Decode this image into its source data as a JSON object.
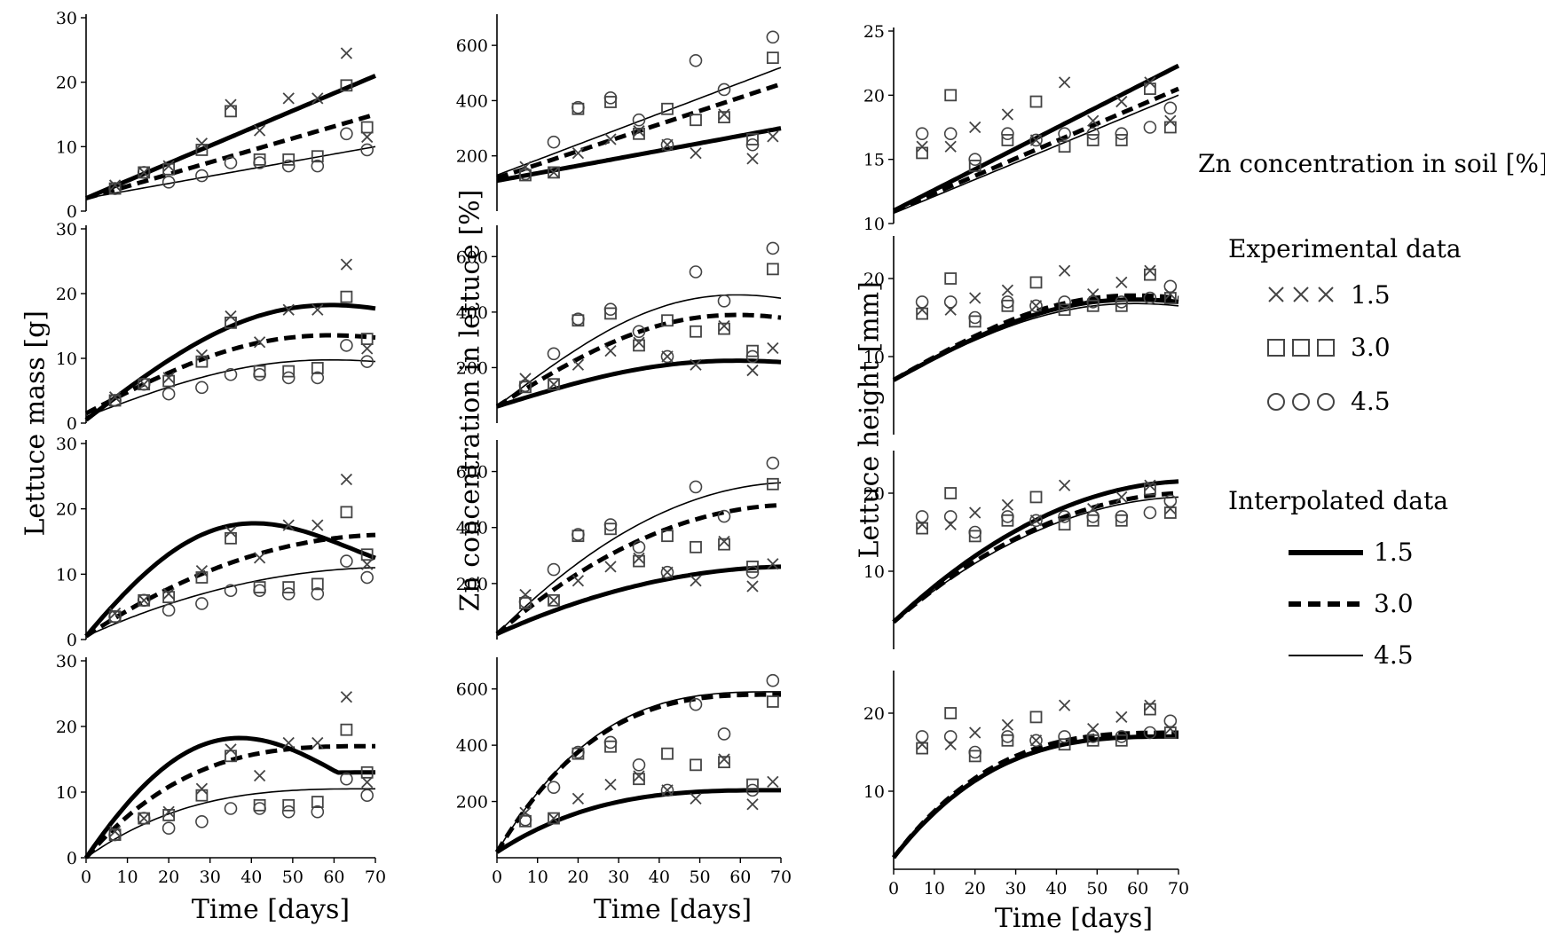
{
  "figure": {
    "columns": [
      {
        "ylabel": "Lettuce mass [g]",
        "xlabel": "Time [days]",
        "ylim": [
          0,
          30
        ],
        "yticks": [
          "0",
          "10",
          "20",
          "30"
        ]
      },
      {
        "ylabel": "Zn concentration in lettuce [%]",
        "xlabel": "Time [days]",
        "ylim": [
          0,
          700
        ],
        "yticks": [
          "200",
          "400",
          "600"
        ]
      },
      {
        "ylabel": "Lettuce height [mm]",
        "xlabel": "Time [days]",
        "ylim": [
          0,
          25
        ],
        "yticks": [
          "10",
          "20"
        ]
      }
    ],
    "top_right_yticks": [
      "10",
      "15",
      "20",
      "25"
    ],
    "xticks": [
      "0",
      "10",
      "20",
      "30",
      "40",
      "50",
      "60",
      "70"
    ]
  },
  "legend": {
    "title": "Zn concentration in soil [%]",
    "experimental_title": "Experimental data",
    "interpolated_title": "Interpolated data",
    "entries": [
      {
        "marker": "x",
        "value": "1.5",
        "line": "solid-thick"
      },
      {
        "marker": "square",
        "value": "3.0",
        "line": "dashed-thick"
      },
      {
        "marker": "circle",
        "value": "4.5",
        "line": "solid-thin"
      }
    ]
  },
  "chart_data": {
    "type": "scatter",
    "x_days": [
      7,
      14,
      21,
      28,
      35,
      42,
      49,
      56,
      63,
      68
    ],
    "columns": [
      {
        "name": "Lettuce mass",
        "points": {
          "1.5": [
            [
              7,
              4
            ],
            [
              14,
              6
            ],
            [
              20,
              7
            ],
            [
              28,
              10.5
            ],
            [
              35,
              16.5
            ],
            [
              42,
              12.5
            ],
            [
              49,
              17.5
            ],
            [
              56,
              17.5
            ],
            [
              63,
              24.5
            ],
            [
              68,
              11.5
            ]
          ],
          "3.0": [
            [
              7,
              3.5
            ],
            [
              14,
              6
            ],
            [
              20,
              6.5
            ],
            [
              28,
              9.5
            ],
            [
              35,
              15.5
            ],
            [
              42,
              8
            ],
            [
              49,
              8
            ],
            [
              56,
              8.5
            ],
            [
              63,
              19.5
            ],
            [
              68,
              13
            ]
          ],
          "4.5": [
            [
              7,
              3.5
            ],
            [
              14,
              6
            ],
            [
              20,
              4.5
            ],
            [
              28,
              5.5
            ],
            [
              35,
              7.5
            ],
            [
              42,
              7.5
            ],
            [
              49,
              7
            ],
            [
              56,
              7
            ],
            [
              63,
              12
            ],
            [
              68,
              9.5
            ]
          ]
        },
        "fits": [
          {
            "1.5": [
              2,
              21
            ],
            "3.0": [
              2,
              15
            ],
            "4.5": [
              2,
              10
            ]
          },
          {
            "1.5": [
              0.5,
              17.7
            ],
            "3.0": [
              1.5,
              13.2
            ],
            "4.5": [
              1,
              9.5
            ]
          },
          {
            "1.5": [
              0.5,
              16
            ],
            "3.0": [
              0.5,
              16
            ],
            "4.5": [
              0.5,
              11
            ]
          },
          {
            "1.5": [
              0,
              13
            ],
            "3.0": [
              0,
              17
            ],
            "4.5": [
              0,
              10.5
            ]
          }
        ]
      },
      {
        "name": "Zn concentration in lettuce",
        "points": {
          "1.5": [
            [
              7,
              160
            ],
            [
              14,
              140
            ],
            [
              20,
              210
            ],
            [
              28,
              260
            ],
            [
              35,
              290
            ],
            [
              42,
              240
            ],
            [
              49,
              210
            ],
            [
              56,
              350
            ],
            [
              63,
              190
            ],
            [
              68,
              270
            ]
          ],
          "3.0": [
            [
              7,
              130
            ],
            [
              14,
              140
            ],
            [
              20,
              370
            ],
            [
              28,
              395
            ],
            [
              35,
              280
            ],
            [
              42,
              370
            ],
            [
              49,
              330
            ],
            [
              56,
              340
            ],
            [
              63,
              260
            ],
            [
              68,
              555
            ]
          ],
          "4.5": [
            [
              7,
              135
            ],
            [
              14,
              250
            ],
            [
              20,
              375
            ],
            [
              28,
              410
            ],
            [
              35,
              330
            ],
            [
              42,
              240
            ],
            [
              49,
              545
            ],
            [
              56,
              440
            ],
            [
              63,
              240
            ],
            [
              68,
              630
            ]
          ]
        },
        "fits": [
          {
            "1.5": [
              110,
              300
            ],
            "3.0": [
              120,
              460
            ],
            "4.5": [
              130,
              520
            ]
          },
          {
            "1.5": [
              60,
              220
            ],
            "3.0": [
              60,
              380
            ],
            "4.5": [
              60,
              450
            ]
          },
          {
            "1.5": [
              20,
              260
            ],
            "3.0": [
              20,
              480
            ],
            "4.5": [
              20,
              560
            ]
          },
          {
            "1.5": [
              20,
              240
            ],
            "3.0": [
              20,
              580
            ],
            "4.5": [
              20,
              590
            ]
          }
        ]
      },
      {
        "name": "Lettuce height",
        "points": {
          "1.5": [
            [
              7,
              16
            ],
            [
              14,
              16
            ],
            [
              20,
              17.5
            ],
            [
              28,
              18.5
            ],
            [
              35,
              16.5
            ],
            [
              42,
              21
            ],
            [
              49,
              18
            ],
            [
              56,
              19.5
            ],
            [
              63,
              21
            ],
            [
              68,
              18
            ]
          ],
          "3.0": [
            [
              7,
              15.5
            ],
            [
              14,
              20
            ],
            [
              20,
              14.5
            ],
            [
              28,
              16.5
            ],
            [
              35,
              19.5
            ],
            [
              42,
              16
            ],
            [
              49,
              16.5
            ],
            [
              56,
              16.5
            ],
            [
              63,
              20.5
            ],
            [
              68,
              17.5
            ]
          ],
          "4.5": [
            [
              7,
              17
            ],
            [
              14,
              17
            ],
            [
              20,
              15
            ],
            [
              28,
              17
            ],
            [
              35,
              16.5
            ],
            [
              42,
              17
            ],
            [
              49,
              17
            ],
            [
              56,
              17
            ],
            [
              63,
              17.5
            ],
            [
              68,
              19
            ]
          ]
        },
        "fits": [
          {
            "1.5": [
              11,
              22.3
            ],
            "3.0": [
              11,
              20.5
            ],
            "4.5": [
              10.8,
              20
            ]
          },
          {
            "1.5": [
              7,
              17
            ],
            "3.0": [
              7,
              17.5
            ],
            "4.5": [
              7,
              16.5
            ]
          },
          {
            "1.5": [
              3.5,
              21.5
            ],
            "3.0": [
              3.5,
              20
            ],
            "4.5": [
              3.5,
              19.5
            ]
          },
          {
            "1.5": [
              1.5,
              17
            ],
            "3.0": [
              1.5,
              17.5
            ],
            "4.5": [
              1.5,
              17
            ]
          }
        ]
      }
    ]
  }
}
